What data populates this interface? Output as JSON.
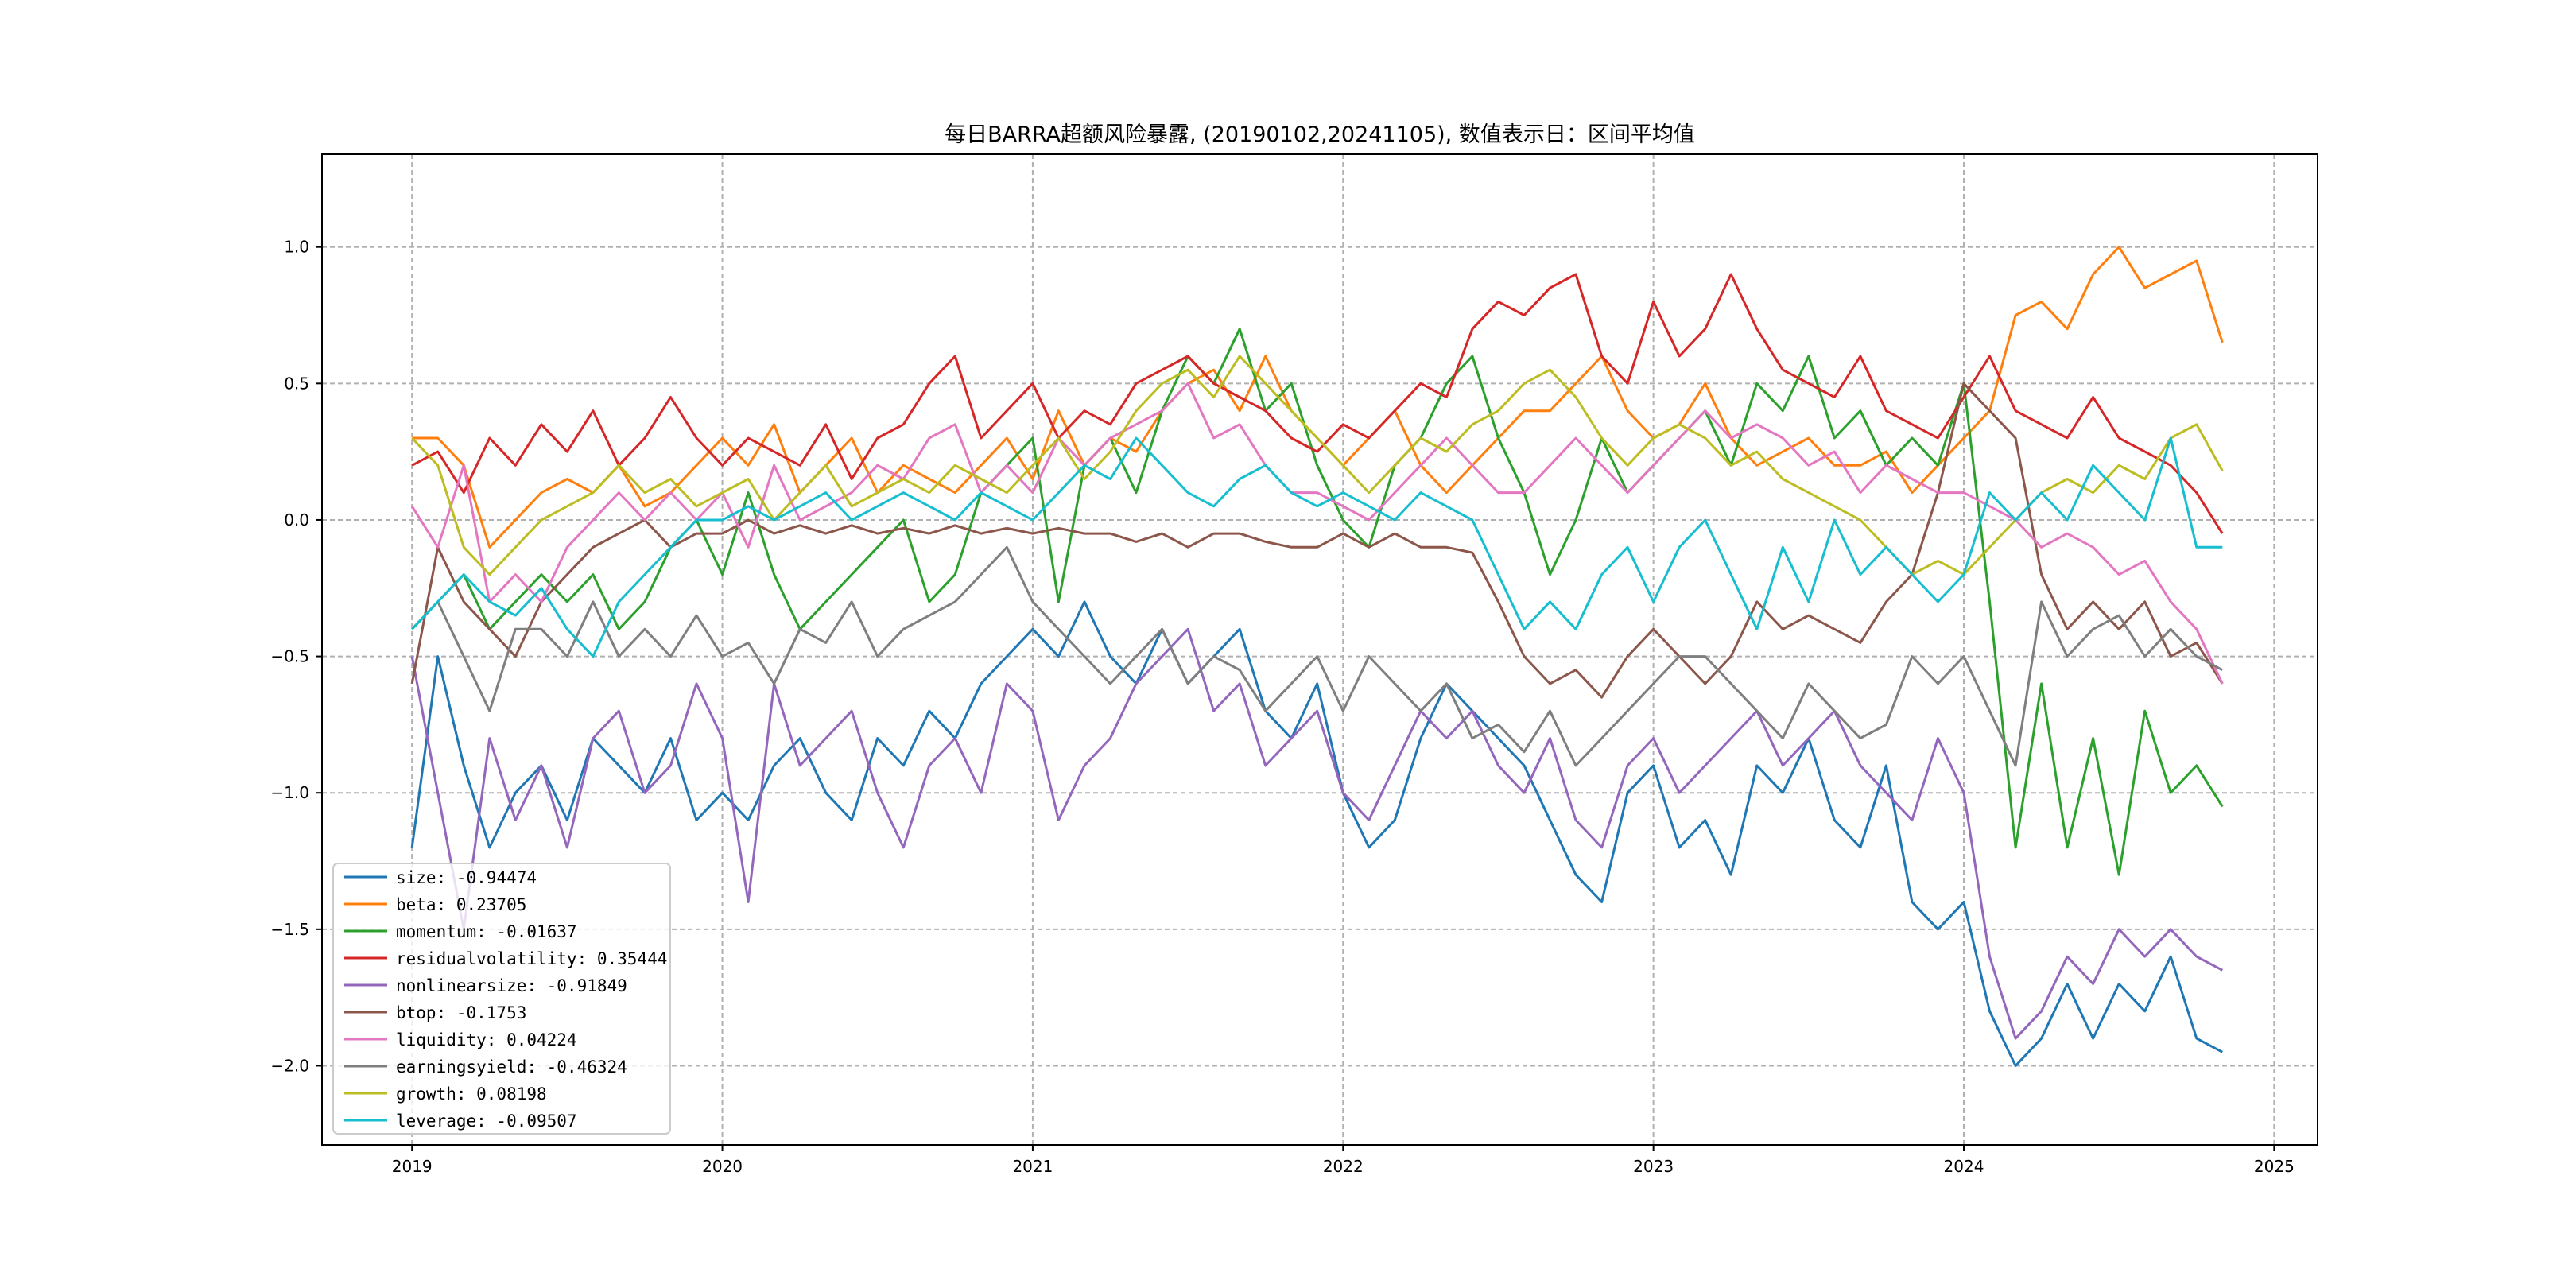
{
  "chart_data": {
    "type": "line",
    "title": "每日BARRA超额风险暴露, (20190102,20241105),  数值表示日：区间平均值",
    "xlabel": "",
    "ylabel": "",
    "xlim": [
      2018.71,
      2025.14
    ],
    "ylim": [
      -2.29,
      1.34
    ],
    "grid": true,
    "legend_placement": "lower-left",
    "x_ticks": [
      2019,
      2020,
      2021,
      2022,
      2023,
      2024,
      2025
    ],
    "x_tick_labels": [
      "2019",
      "2020",
      "2021",
      "2022",
      "2023",
      "2024",
      "2025"
    ],
    "y_ticks": [
      -2.0,
      -1.5,
      -1.0,
      -0.5,
      0.0,
      0.5,
      1.0
    ],
    "y_tick_labels": [
      "−2.0",
      "−1.5",
      "−1.0",
      "−0.5",
      "0.0",
      "0.5",
      "1.0"
    ],
    "x_start": 2019.0,
    "x_step_months": 1,
    "series": [
      {
        "name": "size",
        "legend": "size: -0.94474",
        "color": "#1f77b4",
        "values": [
          -1.2,
          -0.5,
          -0.9,
          -1.2,
          -1.0,
          -0.9,
          -1.1,
          -0.8,
          -0.9,
          -1.0,
          -0.8,
          -1.1,
          -1.0,
          -1.1,
          -0.9,
          -0.8,
          -1.0,
          -1.1,
          -0.8,
          -0.9,
          -0.7,
          -0.8,
          -0.6,
          -0.5,
          -0.4,
          -0.5,
          -0.3,
          -0.5,
          -0.6,
          -0.4,
          -0.6,
          -0.5,
          -0.4,
          -0.7,
          -0.8,
          -0.6,
          -1.0,
          -1.2,
          -1.1,
          -0.8,
          -0.6,
          -0.7,
          -0.8,
          -0.9,
          -1.1,
          -1.3,
          -1.4,
          -1.0,
          -0.9,
          -1.2,
          -1.1,
          -1.3,
          -0.9,
          -1.0,
          -0.8,
          -1.1,
          -1.2,
          -0.9,
          -1.4,
          -1.5,
          -1.4,
          -1.8,
          -2.0,
          -1.9,
          -1.7,
          -1.9,
          -1.7,
          -1.8,
          -1.6,
          -1.9,
          -1.95
        ]
      },
      {
        "name": "beta",
        "legend": "beta: 0.23705",
        "color": "#ff7f0e",
        "values": [
          0.3,
          0.3,
          0.2,
          -0.1,
          0.0,
          0.1,
          0.15,
          0.1,
          0.2,
          0.05,
          0.1,
          0.2,
          0.3,
          0.2,
          0.35,
          0.1,
          0.2,
          0.3,
          0.1,
          0.2,
          0.15,
          0.1,
          0.2,
          0.3,
          0.15,
          0.4,
          0.2,
          0.3,
          0.25,
          0.4,
          0.5,
          0.55,
          0.4,
          0.6,
          0.4,
          0.3,
          0.2,
          0.3,
          0.4,
          0.2,
          0.1,
          0.2,
          0.3,
          0.4,
          0.4,
          0.5,
          0.6,
          0.4,
          0.3,
          0.35,
          0.5,
          0.3,
          0.2,
          0.25,
          0.3,
          0.2,
          0.2,
          0.25,
          0.1,
          0.2,
          0.3,
          0.4,
          0.75,
          0.8,
          0.7,
          0.9,
          1.0,
          0.85,
          0.9,
          0.95,
          0.65
        ]
      },
      {
        "name": "momentum",
        "legend": "momentum: -0.01637",
        "color": "#2ca02c",
        "values": [
          -0.4,
          -0.3,
          -0.2,
          -0.4,
          -0.3,
          -0.2,
          -0.3,
          -0.2,
          -0.4,
          -0.3,
          -0.1,
          0.0,
          -0.2,
          0.1,
          -0.2,
          -0.4,
          -0.3,
          -0.2,
          -0.1,
          0.0,
          -0.3,
          -0.2,
          0.1,
          0.2,
          0.3,
          -0.3,
          0.2,
          0.3,
          0.1,
          0.4,
          0.6,
          0.5,
          0.7,
          0.4,
          0.5,
          0.2,
          0.0,
          -0.1,
          0.2,
          0.3,
          0.5,
          0.6,
          0.3,
          0.1,
          -0.2,
          0.0,
          0.3,
          0.1,
          0.2,
          0.3,
          0.4,
          0.2,
          0.5,
          0.4,
          0.6,
          0.3,
          0.4,
          0.2,
          0.3,
          0.2,
          0.5,
          -0.3,
          -1.2,
          -0.6,
          -1.2,
          -0.8,
          -1.3,
          -0.7,
          -1.0,
          -0.9,
          -1.05
        ]
      },
      {
        "name": "residualvolatility",
        "legend": "residualvolatility: 0.35444",
        "color": "#d62728",
        "values": [
          0.2,
          0.25,
          0.1,
          0.3,
          0.2,
          0.35,
          0.25,
          0.4,
          0.2,
          0.3,
          0.45,
          0.3,
          0.2,
          0.3,
          0.25,
          0.2,
          0.35,
          0.15,
          0.3,
          0.35,
          0.5,
          0.6,
          0.3,
          0.4,
          0.5,
          0.3,
          0.4,
          0.35,
          0.5,
          0.55,
          0.6,
          0.5,
          0.45,
          0.4,
          0.3,
          0.25,
          0.35,
          0.3,
          0.4,
          0.5,
          0.45,
          0.7,
          0.8,
          0.75,
          0.85,
          0.9,
          0.6,
          0.5,
          0.8,
          0.6,
          0.7,
          0.9,
          0.7,
          0.55,
          0.5,
          0.45,
          0.6,
          0.4,
          0.35,
          0.3,
          0.45,
          0.6,
          0.4,
          0.35,
          0.3,
          0.45,
          0.3,
          0.25,
          0.2,
          0.1,
          -0.05
        ]
      },
      {
        "name": "nonlinearsize",
        "legend": "nonlinearsize: -0.91849",
        "color": "#9467bd",
        "values": [
          -0.5,
          -1.0,
          -1.5,
          -0.8,
          -1.1,
          -0.9,
          -1.2,
          -0.8,
          -0.7,
          -1.0,
          -0.9,
          -0.6,
          -0.8,
          -1.4,
          -0.6,
          -0.9,
          -0.8,
          -0.7,
          -1.0,
          -1.2,
          -0.9,
          -0.8,
          -1.0,
          -0.6,
          -0.7,
          -1.1,
          -0.9,
          -0.8,
          -0.6,
          -0.5,
          -0.4,
          -0.7,
          -0.6,
          -0.9,
          -0.8,
          -0.7,
          -1.0,
          -1.1,
          -0.9,
          -0.7,
          -0.8,
          -0.7,
          -0.9,
          -1.0,
          -0.8,
          -1.1,
          -1.2,
          -0.9,
          -0.8,
          -1.0,
          -0.9,
          -0.8,
          -0.7,
          -0.9,
          -0.8,
          -0.7,
          -0.9,
          -1.0,
          -1.1,
          -0.8,
          -1.0,
          -1.6,
          -1.9,
          -1.8,
          -1.6,
          -1.7,
          -1.5,
          -1.6,
          -1.5,
          -1.6,
          -1.65
        ]
      },
      {
        "name": "btop",
        "legend": "btop: -0.1753",
        "color": "#8c564b",
        "values": [
          -0.6,
          -0.1,
          -0.3,
          -0.4,
          -0.5,
          -0.3,
          -0.2,
          -0.1,
          -0.05,
          0.0,
          -0.1,
          -0.05,
          -0.05,
          0.0,
          -0.05,
          -0.02,
          -0.05,
          -0.02,
          -0.05,
          -0.03,
          -0.05,
          -0.02,
          -0.05,
          -0.03,
          -0.05,
          -0.03,
          -0.05,
          -0.05,
          -0.08,
          -0.05,
          -0.1,
          -0.05,
          -0.05,
          -0.08,
          -0.1,
          -0.1,
          -0.05,
          -0.1,
          -0.05,
          -0.1,
          -0.1,
          -0.12,
          -0.3,
          -0.5,
          -0.6,
          -0.55,
          -0.65,
          -0.5,
          -0.4,
          -0.5,
          -0.6,
          -0.5,
          -0.3,
          -0.4,
          -0.35,
          -0.4,
          -0.45,
          -0.3,
          -0.2,
          0.1,
          0.5,
          0.4,
          0.3,
          -0.2,
          -0.4,
          -0.3,
          -0.4,
          -0.3,
          -0.5,
          -0.45,
          -0.6
        ]
      },
      {
        "name": "liquidity",
        "legend": "liquidity: 0.04224",
        "color": "#e377c2",
        "values": [
          0.05,
          -0.1,
          0.2,
          -0.3,
          -0.2,
          -0.3,
          -0.1,
          0.0,
          0.1,
          0.0,
          0.1,
          0.0,
          0.1,
          -0.1,
          0.2,
          0.0,
          0.05,
          0.1,
          0.2,
          0.15,
          0.3,
          0.35,
          0.1,
          0.2,
          0.1,
          0.3,
          0.2,
          0.3,
          0.35,
          0.4,
          0.5,
          0.3,
          0.35,
          0.2,
          0.1,
          0.1,
          0.05,
          0.0,
          0.1,
          0.2,
          0.3,
          0.2,
          0.1,
          0.1,
          0.2,
          0.3,
          0.2,
          0.1,
          0.2,
          0.3,
          0.4,
          0.3,
          0.35,
          0.3,
          0.2,
          0.25,
          0.1,
          0.2,
          0.15,
          0.1,
          0.1,
          0.05,
          0.0,
          -0.1,
          -0.05,
          -0.1,
          -0.2,
          -0.15,
          -0.3,
          -0.4,
          -0.6
        ]
      },
      {
        "name": "earningsyield",
        "legend": "earningsyield: -0.46324",
        "color": "#7f7f7f",
        "values": [
          -0.4,
          -0.3,
          -0.5,
          -0.7,
          -0.4,
          -0.4,
          -0.5,
          -0.3,
          -0.5,
          -0.4,
          -0.5,
          -0.35,
          -0.5,
          -0.45,
          -0.6,
          -0.4,
          -0.45,
          -0.3,
          -0.5,
          -0.4,
          -0.35,
          -0.3,
          -0.2,
          -0.1,
          -0.3,
          -0.4,
          -0.5,
          -0.6,
          -0.5,
          -0.4,
          -0.6,
          -0.5,
          -0.55,
          -0.7,
          -0.6,
          -0.5,
          -0.7,
          -0.5,
          -0.6,
          -0.7,
          -0.6,
          -0.8,
          -0.75,
          -0.85,
          -0.7,
          -0.9,
          -0.8,
          -0.7,
          -0.6,
          -0.5,
          -0.5,
          -0.6,
          -0.7,
          -0.8,
          -0.6,
          -0.7,
          -0.8,
          -0.75,
          -0.5,
          -0.6,
          -0.5,
          -0.7,
          -0.9,
          -0.3,
          -0.5,
          -0.4,
          -0.35,
          -0.5,
          -0.4,
          -0.5,
          -0.55
        ]
      },
      {
        "name": "growth",
        "legend": "growth: 0.08198",
        "color": "#bcbd22",
        "values": [
          0.3,
          0.2,
          -0.1,
          -0.2,
          -0.1,
          0.0,
          0.05,
          0.1,
          0.2,
          0.1,
          0.15,
          0.05,
          0.1,
          0.15,
          0.0,
          0.1,
          0.2,
          0.05,
          0.1,
          0.15,
          0.1,
          0.2,
          0.15,
          0.1,
          0.2,
          0.3,
          0.15,
          0.25,
          0.4,
          0.5,
          0.55,
          0.45,
          0.6,
          0.5,
          0.4,
          0.3,
          0.2,
          0.1,
          0.2,
          0.3,
          0.25,
          0.35,
          0.4,
          0.5,
          0.55,
          0.45,
          0.3,
          0.2,
          0.3,
          0.35,
          0.3,
          0.2,
          0.25,
          0.15,
          0.1,
          0.05,
          0.0,
          -0.1,
          -0.2,
          -0.15,
          -0.2,
          -0.1,
          0.0,
          0.1,
          0.15,
          0.1,
          0.2,
          0.15,
          0.3,
          0.35,
          0.18
        ]
      },
      {
        "name": "leverage",
        "legend": "leverage: -0.09507",
        "color": "#17becf",
        "values": [
          -0.4,
          -0.3,
          -0.2,
          -0.3,
          -0.35,
          -0.25,
          -0.4,
          -0.5,
          -0.3,
          -0.2,
          -0.1,
          0.0,
          0.0,
          0.05,
          0.0,
          0.05,
          0.1,
          0.0,
          0.05,
          0.1,
          0.05,
          0.0,
          0.1,
          0.05,
          0.0,
          0.1,
          0.2,
          0.15,
          0.3,
          0.2,
          0.1,
          0.05,
          0.15,
          0.2,
          0.1,
          0.05,
          0.1,
          0.05,
          0.0,
          0.1,
          0.05,
          0.0,
          -0.2,
          -0.4,
          -0.3,
          -0.4,
          -0.2,
          -0.1,
          -0.3,
          -0.1,
          0.0,
          -0.2,
          -0.4,
          -0.1,
          -0.3,
          0.0,
          -0.2,
          -0.1,
          -0.2,
          -0.3,
          -0.2,
          0.1,
          0.0,
          0.1,
          0.0,
          0.2,
          0.1,
          0.0,
          0.3,
          -0.1,
          -0.1
        ]
      }
    ]
  }
}
